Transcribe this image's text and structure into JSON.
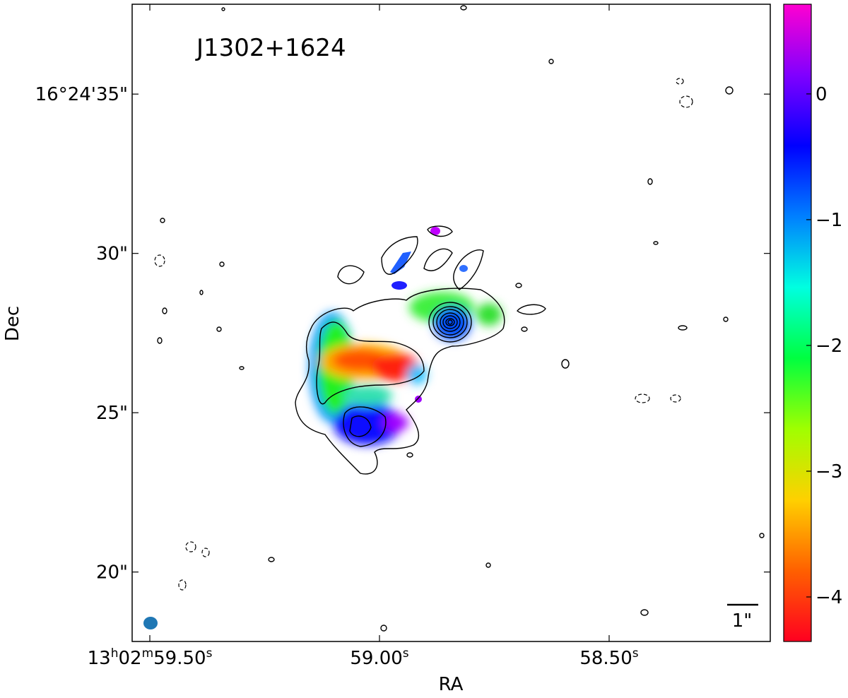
{
  "chart_data": {
    "type": "image",
    "title": "J1302+1624",
    "xlabel": "RA",
    "ylabel": "Dec",
    "xlim": [
      59.5385,
      58.1492
    ],
    "xticks": [
      {
        "value": 59.5,
        "label": "13h02m59.50s"
      },
      {
        "value": 59.0,
        "label": "59.00s"
      },
      {
        "value": 58.5,
        "label": "58.50s"
      }
    ],
    "ylim": [
      17.82,
      37.82
    ],
    "yticks": [
      {
        "value": 35,
        "label": "16°24'35\""
      },
      {
        "value": 30,
        "label": "30\""
      },
      {
        "value": 25,
        "label": "25\""
      },
      {
        "value": 20,
        "label": "20\""
      }
    ],
    "colorbar": {
      "clim": [
        -4.354,
        0.713
      ],
      "ticks": [
        {
          "value": 0,
          "label": "0"
        },
        {
          "value": -1,
          "label": "−1"
        },
        {
          "value": -2,
          "label": "−2"
        },
        {
          "value": -3,
          "label": "−3"
        },
        {
          "value": -4,
          "label": "−4"
        }
      ],
      "colormap": [
        "#ff0020",
        "#ff6000",
        "#ffd000",
        "#a0ff00",
        "#00ff40",
        "#00ffe0",
        "#0080ff",
        "#0000ff",
        "#8000ff",
        "#ff00d0"
      ]
    },
    "scale_bar_label": "1\""
  }
}
